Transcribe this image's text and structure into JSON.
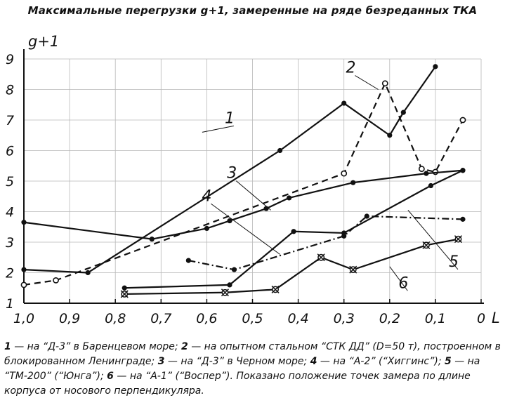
{
  "title": "Максимальные перегрузки g+1, замеренные на ряде безреданных ТКА",
  "chart_data": {
    "type": "line",
    "ylabel": "g+1",
    "xlabel": "L",
    "xlim": [
      1.0,
      0.0
    ],
    "ylim": [
      1,
      9
    ],
    "x_ticks": [
      "1,0",
      "0,9",
      "0,8",
      "0,7",
      "0,6",
      "0,5",
      "0,4",
      "0,3",
      "0,2",
      "0,1",
      "0"
    ],
    "y_ticks": [
      "1",
      "2",
      "3",
      "4",
      "5",
      "6",
      "7",
      "8",
      "9"
    ],
    "grid": true,
    "series": [
      {
        "name": "1",
        "style": "solid",
        "marker": "dot",
        "points": [
          [
            1.0,
            2.1
          ],
          [
            0.86,
            2.0
          ],
          [
            0.44,
            6.0
          ],
          [
            0.3,
            7.55
          ],
          [
            0.2,
            6.5
          ],
          [
            0.17,
            7.25
          ],
          [
            0.1,
            8.75
          ]
        ]
      },
      {
        "name": "2",
        "style": "dashed",
        "marker": "circle",
        "points": [
          [
            1.0,
            1.6
          ],
          [
            0.93,
            1.75
          ],
          [
            0.3,
            5.25
          ],
          [
            0.21,
            8.2
          ],
          [
            0.13,
            5.4
          ],
          [
            0.1,
            5.3
          ],
          [
            0.04,
            7.0
          ]
        ]
      },
      {
        "name": "3",
        "style": "solid",
        "marker": "dot",
        "points": [
          [
            1.0,
            3.65
          ],
          [
            0.72,
            3.1
          ],
          [
            0.6,
            3.45
          ],
          [
            0.55,
            3.7
          ],
          [
            0.47,
            4.1
          ],
          [
            0.42,
            4.45
          ],
          [
            0.28,
            4.95
          ],
          [
            0.12,
            5.25
          ],
          [
            0.04,
            5.35
          ]
        ]
      },
      {
        "name": "4",
        "style": "dash-dot",
        "marker": "dot",
        "points": [
          [
            0.64,
            2.4
          ],
          [
            0.54,
            2.1
          ],
          [
            0.3,
            3.2
          ],
          [
            0.25,
            3.85
          ],
          [
            0.04,
            3.75
          ]
        ]
      },
      {
        "name": "5",
        "style": "solid",
        "marker": "dot",
        "points": [
          [
            0.78,
            1.5
          ],
          [
            0.55,
            1.6
          ],
          [
            0.41,
            3.35
          ],
          [
            0.3,
            3.3
          ],
          [
            0.11,
            4.85
          ],
          [
            0.04,
            5.35
          ]
        ]
      },
      {
        "name": "6",
        "style": "solid",
        "marker": "star",
        "points": [
          [
            0.78,
            1.3
          ],
          [
            0.56,
            1.35
          ],
          [
            0.45,
            1.45
          ],
          [
            0.35,
            2.5
          ],
          [
            0.28,
            2.1
          ],
          [
            0.12,
            2.9
          ],
          [
            0.05,
            3.1
          ]
        ]
      }
    ]
  },
  "caption": {
    "n1": "1",
    "t1": " — на “Д-3” в Баренцевом море; ",
    "n2": "2",
    "t2": " — на опытном стальном “СТК ДД” (D=50 т), построенном в блокированном Ленинграде; ",
    "n3": "3",
    "t3": " — на “Д-3” в Черном море; ",
    "n4": "4",
    "t4": " — на “А-2” (“Хиггинс”); ",
    "n5": "5",
    "t5": " — на “ТМ-200” (“Юнга”); ",
    "n6": "6",
    "t6": " — на “А-1” (“Воспер”). Показано положение точек замера по длине корпуса от носового перпендикуляра."
  }
}
